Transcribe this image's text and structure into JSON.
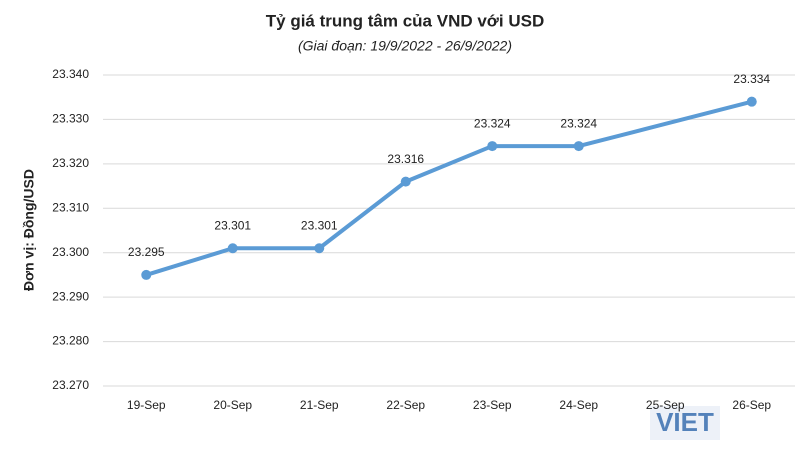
{
  "chart_data": {
    "type": "line",
    "title": "Tỷ giá trung tâm của VND với USD",
    "subtitle": "(Giai đoạn: 19/9/2022 - 26/9/2022)",
    "y_label": "Đơn vị: Đồng/USD",
    "categories": [
      "19-Sep",
      "20-Sep",
      "21-Sep",
      "22-Sep",
      "23-Sep",
      "24-Sep",
      "25-Sep",
      "26-Sep"
    ],
    "series": [
      {
        "name": "VND/USD",
        "color": "#5b9bd5",
        "values": [
          23295,
          23301,
          23301,
          23316,
          23324,
          23324,
          null,
          23334
        ],
        "value_labels": [
          "23.295",
          "23.301",
          "23.301",
          "23.316",
          "23.324",
          "23.324",
          null,
          "23.334"
        ]
      }
    ],
    "span_gaps": true,
    "ylim": [
      23270,
      23340
    ],
    "yticks": [
      {
        "value": 23270,
        "label": "23.270"
      },
      {
        "value": 23280,
        "label": "23.280"
      },
      {
        "value": 23290,
        "label": "23.290"
      },
      {
        "value": 23300,
        "label": "23.300"
      },
      {
        "value": 23310,
        "label": "23.310"
      },
      {
        "value": 23320,
        "label": "23.320"
      },
      {
        "value": 23330,
        "label": "23.330"
      },
      {
        "value": 23340,
        "label": "23.340"
      }
    ],
    "grid": true,
    "watermark": "VIET"
  }
}
